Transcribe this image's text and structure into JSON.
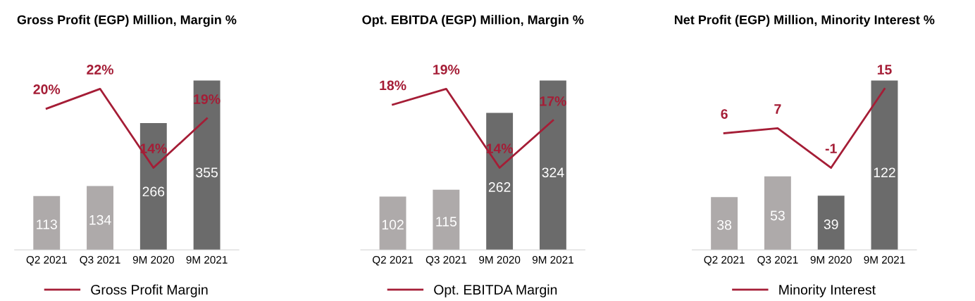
{
  "chart_data": [
    {
      "type": "bar",
      "title": "Gross Profit (EGP) Million, Margin %",
      "categories": [
        "Q2 2021",
        "Q3 2021",
        "9M 2020",
        "9M 2021"
      ],
      "data_labels": true,
      "legend": "bottom",
      "grid": false,
      "series": [
        {
          "colors": [
            "#aeaaaa",
            "#aeaaaa",
            "#6b6b6b",
            "#6b6b6b"
          ],
          "values": [
            113,
            134,
            266,
            355
          ]
        },
        {
          "type": "line",
          "axis": "y2",
          "name": "Gross Profit Margin",
          "color": "#a51d36",
          "values": [
            20,
            22,
            14,
            19
          ],
          "value_labels": [
            "20%",
            "22%",
            "14%",
            "19%"
          ]
        }
      ]
    },
    {
      "type": "bar",
      "title": "Opt. EBITDA (EGP) Million, Margin %",
      "categories": [
        "Q2 2021",
        "Q3 2021",
        "9M 2020",
        "9M 2021"
      ],
      "data_labels": true,
      "legend": "bottom",
      "grid": false,
      "series": [
        {
          "colors": [
            "#aeaaaa",
            "#aeaaaa",
            "#6b6b6b",
            "#6b6b6b"
          ],
          "values": [
            102,
            115,
            262,
            324
          ]
        },
        {
          "type": "line",
          "axis": "y2",
          "name": "Opt. EBITDA Margin",
          "color": "#a51d36",
          "values": [
            18,
            19,
            14,
            17
          ],
          "value_labels": [
            "18%",
            "19%",
            "14%",
            "17%"
          ]
        }
      ]
    },
    {
      "type": "bar",
      "title": "Net Profit (EGP) Million, Minority Interest %",
      "categories": [
        "Q2 2021",
        "Q3 2021",
        "9M 2020",
        "9M 2021"
      ],
      "data_labels": true,
      "legend": "bottom",
      "grid": false,
      "series": [
        {
          "colors": [
            "#aeaaaa",
            "#aeaaaa",
            "#6b6b6b",
            "#6b6b6b"
          ],
          "values": [
            38,
            53,
            39,
            122
          ]
        },
        {
          "type": "line",
          "axis": "y2",
          "name": "Minority Interest",
          "color": "#a51d36",
          "values": [
            6,
            7,
            -1,
            15
          ],
          "value_labels": [
            "6",
            "7",
            "-1",
            "15"
          ]
        }
      ]
    }
  ]
}
